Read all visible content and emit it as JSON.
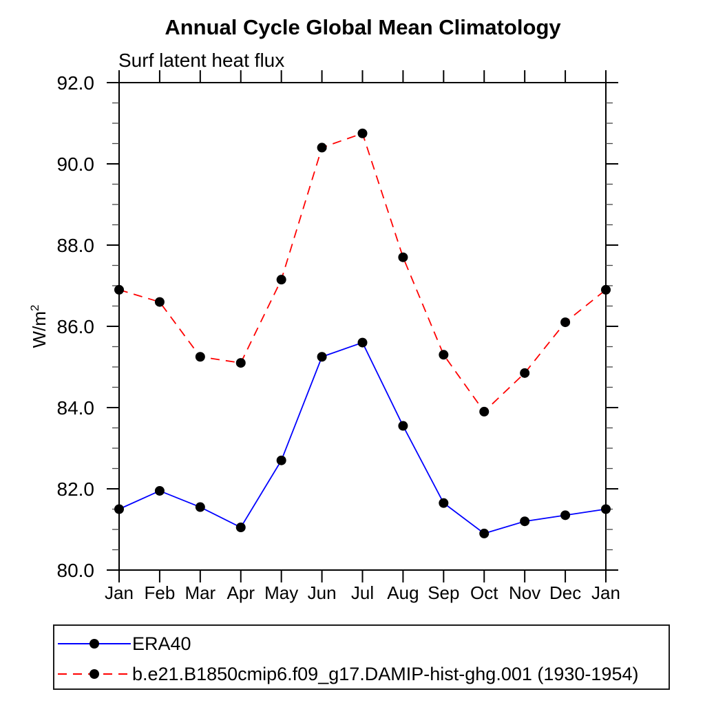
{
  "page": {
    "background": "#ffffff"
  },
  "chart_data": {
    "type": "line",
    "title": "Annual Cycle Global Mean Climatology",
    "subtitle": "Surf latent heat flux",
    "ylabel": "W/m²",
    "ylabel_base": "W/m",
    "ylabel_sup": "2",
    "categories": [
      "Jan",
      "Feb",
      "Mar",
      "Apr",
      "May",
      "Jun",
      "Jul",
      "Aug",
      "Sep",
      "Oct",
      "Nov",
      "Dec",
      "Jan"
    ],
    "series": [
      {
        "name": "ERA40",
        "color": "#0000ff",
        "line_style": "solid",
        "marker": "filled-circle",
        "marker_color": "#000000",
        "values": [
          81.5,
          81.95,
          81.55,
          81.05,
          82.7,
          85.25,
          85.6,
          83.55,
          81.65,
          80.9,
          81.2,
          81.35,
          81.5
        ]
      },
      {
        "name": "b.e21.B1850cmip6.f09_g17.DAMIP-hist-ghg.001 (1930-1954)",
        "color": "#ff0000",
        "line_style": "dashed",
        "marker": "filled-circle",
        "marker_color": "#000000",
        "values": [
          86.9,
          86.6,
          85.25,
          85.1,
          87.15,
          90.4,
          90.75,
          87.7,
          85.3,
          83.9,
          84.85,
          86.1,
          86.9
        ]
      }
    ],
    "ylim": [
      80.0,
      92.0
    ],
    "ytick_major": 2.0,
    "ytick_minor": 0.5,
    "ytick_labels": [
      "80.0",
      "82.0",
      "84.0",
      "86.0",
      "88.0",
      "90.0",
      "92.0"
    ],
    "grid": false,
    "axis_color": "#000000",
    "legend_position": "bottom-box"
  }
}
